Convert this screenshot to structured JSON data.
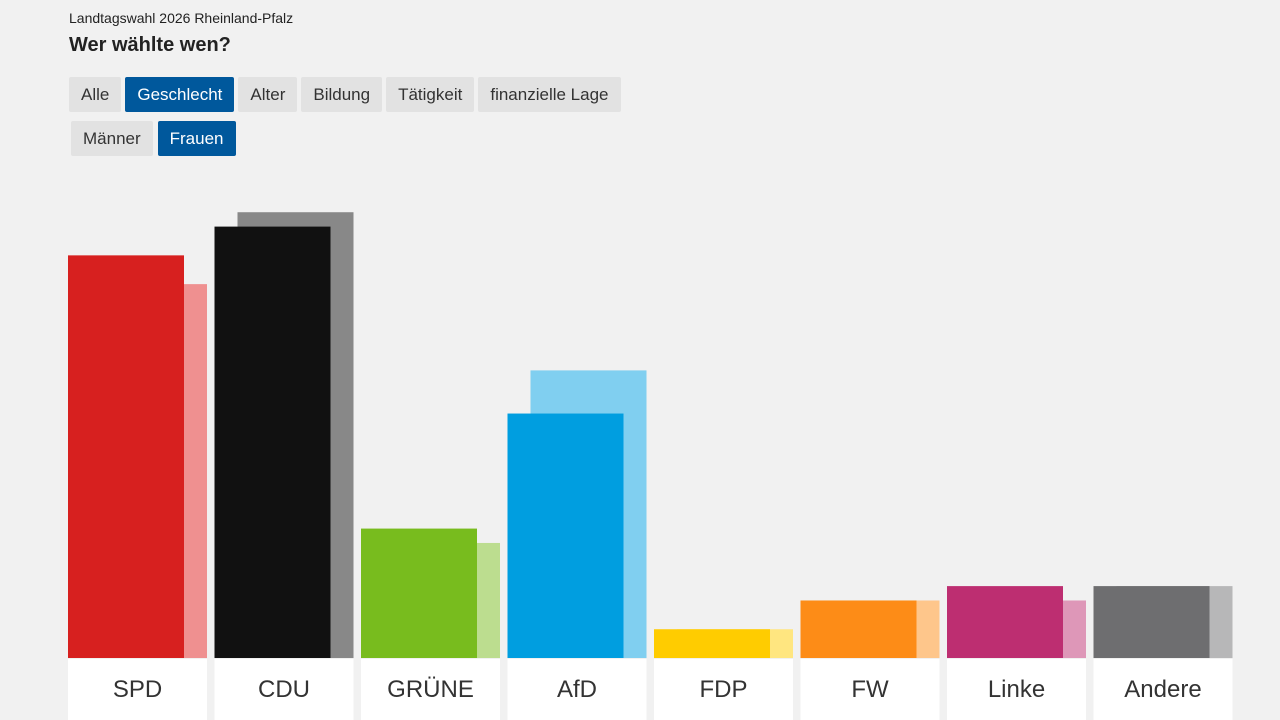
{
  "header": {
    "subtitle": "Landtagswahl 2026 Rheinland-Pfalz",
    "title": "Wer wählte wen?"
  },
  "tabs": [
    {
      "label": "Alle",
      "active": false
    },
    {
      "label": "Geschlecht",
      "active": true
    },
    {
      "label": "Alter",
      "active": false
    },
    {
      "label": "Bildung",
      "active": false
    },
    {
      "label": "Tätigkeit",
      "active": false
    },
    {
      "label": "finanzielle Lage",
      "active": false
    }
  ],
  "subtabs": [
    {
      "label": "Männer",
      "active": false
    },
    {
      "label": "Frauen",
      "active": true
    }
  ],
  "chart_data": {
    "type": "bar",
    "categories": [
      "SPD",
      "CDU",
      "GRÜNE",
      "AfD",
      "FDP",
      "FW",
      "Linke",
      "Andere"
    ],
    "series": [
      {
        "values": [
          28,
          30,
          9,
          17,
          2,
          4,
          5,
          5
        ],
        "colors": [
          "#d7201f",
          "#111111",
          "#78bc1e",
          "#009ee0",
          "#ffcc00",
          "#fd8c17",
          "#bd2e71",
          "#6e6e70"
        ]
      },
      {
        "values": [
          26,
          31,
          8,
          20,
          2,
          4,
          4,
          5
        ],
        "colors": [
          "#ef9090",
          "#888888",
          "#bcdd8f",
          "#80cff0",
          "#ffe680",
          "#fec68b",
          "#de97b8",
          "#b7b7b8"
        ]
      }
    ],
    "ylim": [
      0,
      34
    ],
    "grid": false
  }
}
